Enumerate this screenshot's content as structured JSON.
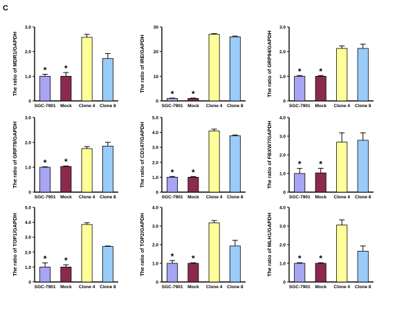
{
  "panel_label": "C",
  "colors": {
    "SGC-7901": "#a8a4f4",
    "Mock": "#8b2a4e",
    "Clone 4": "#ffff99",
    "Clone 8": "#99ccf8",
    "axis": "#000000"
  },
  "chart_data": [
    {
      "type": "bar",
      "ylabel": "The ratio of MDR1/GAPDH",
      "categories": [
        "SGC-7901",
        "Mock",
        "Clone 4",
        "Clone 8"
      ],
      "values": [
        1.0,
        1.0,
        2.58,
        1.72
      ],
      "errors": [
        0.08,
        0.15,
        0.12,
        0.2
      ],
      "significance": [
        "*",
        "*",
        "",
        ""
      ],
      "ylim": [
        0,
        3.0
      ],
      "yticks": [
        "0",
        "1.0",
        "2.0",
        "3.0"
      ]
    },
    {
      "type": "bar",
      "ylabel": "The ratio of IRE/GAPDH",
      "categories": [
        "SGC-7901",
        "Mock",
        "Clone 4",
        "Clone 8"
      ],
      "values": [
        1.0,
        1.0,
        27.0,
        26.0
      ],
      "errors": [
        0.15,
        0.15,
        0.3,
        0.3
      ],
      "significance": [
        "*",
        "*",
        "",
        ""
      ],
      "ylim": [
        0,
        30
      ],
      "yticks": [
        "0",
        "10",
        "20",
        "30"
      ]
    },
    {
      "type": "bar",
      "ylabel": "The ratio of GRP94/GAPDH",
      "categories": [
        "SGC-7901",
        "Mock",
        "Clone 4",
        "Clone 8"
      ],
      "values": [
        1.0,
        1.0,
        2.13,
        2.13
      ],
      "errors": [
        0.03,
        0.03,
        0.1,
        0.17
      ],
      "significance": [
        "*",
        "*",
        "",
        ""
      ],
      "ylim": [
        0,
        3.0
      ],
      "yticks": [
        "0",
        "1.0",
        "2.0",
        "3.0"
      ]
    },
    {
      "type": "bar",
      "ylabel": "The ratio of GRP78/GAPDH",
      "categories": [
        "SGC-7901",
        "Mock",
        "Clone 4",
        "Clone 8"
      ],
      "values": [
        1.0,
        1.03,
        1.75,
        1.85
      ],
      "errors": [
        0.02,
        0.02,
        0.08,
        0.15
      ],
      "significance": [
        "*",
        "*",
        "",
        ""
      ],
      "ylim": [
        0,
        3.0
      ],
      "yticks": [
        "0",
        "1.0",
        "2.0",
        "3.0"
      ]
    },
    {
      "type": "bar",
      "ylabel": "The ratio of CD147/GAPDH",
      "categories": [
        "SGC-7901",
        "Mock",
        "Clone 4",
        "Clone 8"
      ],
      "values": [
        1.0,
        1.0,
        4.1,
        3.78
      ],
      "errors": [
        0.05,
        0.05,
        0.12,
        0.05
      ],
      "significance": [
        "*",
        "*",
        "",
        ""
      ],
      "ylim": [
        0,
        5.0
      ],
      "yticks": [
        "0",
        "1.0",
        "2.0",
        "3.0",
        "4.0",
        "5.0"
      ]
    },
    {
      "type": "bar",
      "ylabel": "The ratio of FBXW7/GAPDH",
      "categories": [
        "SGC-7901",
        "Mock",
        "Clone 4",
        "Clone 8"
      ],
      "values": [
        1.0,
        1.03,
        2.68,
        2.78
      ],
      "errors": [
        0.27,
        0.25,
        0.5,
        0.4
      ],
      "significance": [
        "*",
        "*",
        "",
        ""
      ],
      "ylim": [
        0,
        4.0
      ],
      "yticks": [
        "0",
        "1.0",
        "2.0",
        "3.0",
        "4.0"
      ]
    },
    {
      "type": "bar",
      "ylabel": "The ratio of TOP1/GAPDH",
      "categories": [
        "SGC-7901",
        "Mock",
        "Clone 4",
        "Clone 8"
      ],
      "values": [
        1.0,
        1.0,
        3.85,
        2.38
      ],
      "errors": [
        0.28,
        0.15,
        0.12,
        0.03
      ],
      "significance": [
        "*",
        "*",
        "",
        ""
      ],
      "ylim": [
        0,
        5.0
      ],
      "yticks": [
        "0",
        "1.0",
        "2.0",
        "3.0",
        "4.0",
        "5.0"
      ]
    },
    {
      "type": "bar",
      "ylabel": "The ratio of TOP2/GAPDH",
      "categories": [
        "SGC-7901",
        "Mock",
        "Clone 4",
        "Clone 8"
      ],
      "values": [
        1.0,
        1.0,
        3.17,
        1.93
      ],
      "errors": [
        0.15,
        0.03,
        0.12,
        0.3
      ],
      "significance": [
        "*",
        "*",
        "",
        ""
      ],
      "ylim": [
        0,
        4.0
      ],
      "yticks": [
        "0",
        "1.0",
        "2.0",
        "3.0",
        "4.0"
      ]
    },
    {
      "type": "bar",
      "ylabel": "The ratio of MLH1/GAPDH",
      "categories": [
        "SGC-7901",
        "Mock",
        "Clone 4",
        "Clone 8"
      ],
      "values": [
        1.0,
        1.0,
        3.05,
        1.65
      ],
      "errors": [
        0.03,
        0.03,
        0.28,
        0.28
      ],
      "significance": [
        "*",
        "*",
        "",
        ""
      ],
      "ylim": [
        0,
        4.0
      ],
      "yticks": [
        "0",
        "1.0",
        "2.0",
        "3.0",
        "4.0"
      ]
    }
  ]
}
